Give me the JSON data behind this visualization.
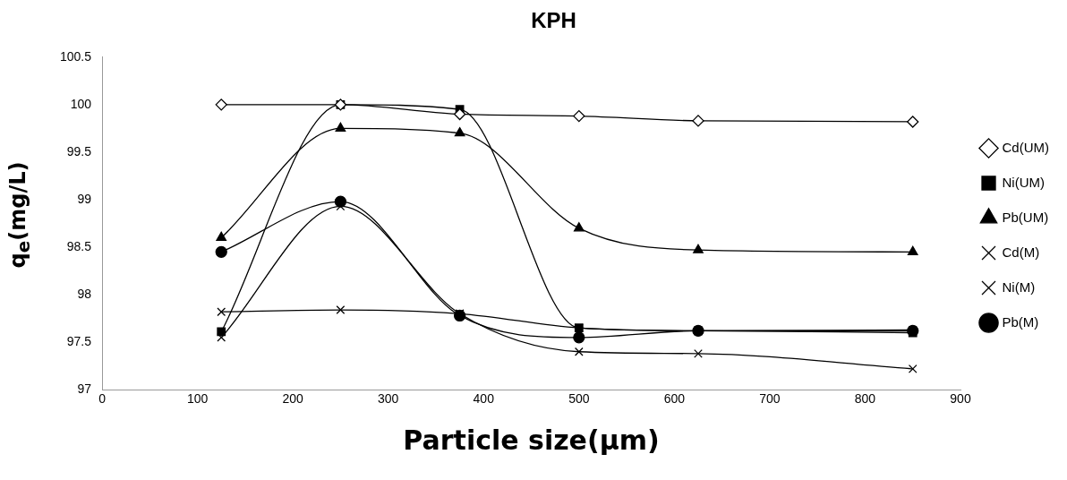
{
  "chart_data": {
    "type": "line",
    "title": "KPH",
    "xlabel": "Particle size(μm)",
    "ylabel": "q$_{e}$(mg/L)",
    "x": [
      125,
      250,
      375,
      500,
      625,
      850
    ],
    "xlim": [
      0,
      900
    ],
    "xticks": [
      0,
      100,
      200,
      300,
      400,
      500,
      600,
      700,
      800,
      900
    ],
    "ylim": [
      97,
      100.5
    ],
    "yticks": [
      97,
      97.5,
      98,
      98.5,
      99,
      99.5,
      100,
      100.5
    ],
    "grid": false,
    "legend": "right",
    "series": [
      {
        "name": "Cd(UM)",
        "color": "#000000",
        "marker": "diamond",
        "values": [
          100.0,
          100.0,
          99.9,
          99.88,
          99.83,
          99.82
        ]
      },
      {
        "name": "Ni(UM)",
        "color": "#000000",
        "marker": "square",
        "values": [
          97.61,
          100.0,
          99.95,
          97.65,
          97.62,
          97.6
        ]
      },
      {
        "name": "Pb(UM)",
        "color": "#000000",
        "marker": "triangle",
        "values": [
          98.6,
          99.75,
          99.7,
          98.7,
          98.47,
          98.45
        ]
      },
      {
        "name": "Cd(M)",
        "color": "#000000",
        "marker": "cross",
        "values": [
          97.55,
          98.93,
          97.8,
          97.4,
          97.38,
          97.22
        ]
      },
      {
        "name": "Ni(M)",
        "color": "#000000",
        "marker": "cross",
        "values": [
          97.82,
          97.84,
          97.8,
          97.65,
          97.62,
          97.63
        ]
      },
      {
        "name": "Pb(M)",
        "color": "#000000",
        "marker": "circle",
        "values": [
          98.45,
          98.98,
          97.78,
          97.55,
          97.62,
          97.62
        ]
      }
    ]
  }
}
